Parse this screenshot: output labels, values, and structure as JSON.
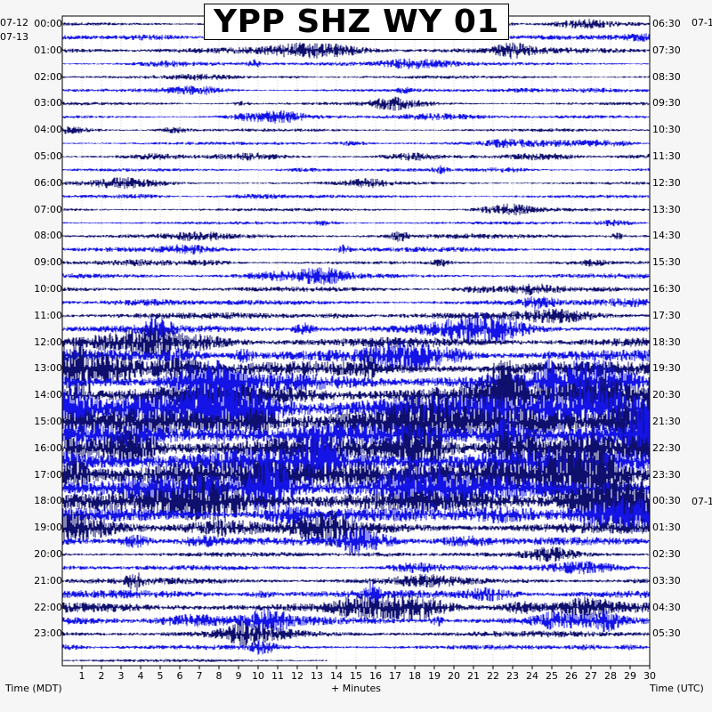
{
  "chart_data": {
    "type": "helicorder",
    "title": "YPP SHZ WY 01",
    "xlabel": "+ Minutes",
    "left_axis_label": "Time (MDT)",
    "right_axis_label": "Time (UTC)",
    "x_ticks": [
      "1",
      "2",
      "3",
      "4",
      "5",
      "6",
      "7",
      "8",
      "9",
      "10",
      "11",
      "12",
      "13",
      "14",
      "15",
      "16",
      "17",
      "18",
      "19",
      "20",
      "21",
      "22",
      "23",
      "24",
      "25",
      "26",
      "27",
      "28",
      "29",
      "30"
    ],
    "xlim": [
      0,
      30
    ],
    "left_date_labels": [
      "07-12",
      "07-13"
    ],
    "right_date_labels": [
      "07-1",
      "07-1"
    ],
    "left_hour_labels": [
      "00:00",
      "01:00",
      "02:00",
      "03:00",
      "04:00",
      "05:00",
      "06:00",
      "07:00",
      "08:00",
      "09:00",
      "10:00",
      "11:00",
      "12:00",
      "13:00",
      "14:00",
      "15:00",
      "16:00",
      "17:00",
      "18:00",
      "19:00",
      "20:00",
      "21:00",
      "22:00",
      "23:00"
    ],
    "right_hour_labels": [
      "06:30",
      "07:30",
      "08:30",
      "09:30",
      "10:30",
      "11:30",
      "12:30",
      "13:30",
      "14:30",
      "15:30",
      "16:30",
      "17:30",
      "18:30",
      "19:30",
      "20:30",
      "21:30",
      "22:30",
      "23:30",
      "00:30",
      "01:30",
      "02:30",
      "03:30",
      "04:30",
      "05:30"
    ],
    "trace_count": 49,
    "trace_minutes": 30,
    "series_colors": [
      "#0f0f6e",
      "#1414e6"
    ],
    "grid": "dotted",
    "noise_amplitude_by_trace": [
      2,
      3,
      4,
      2,
      2,
      2,
      2,
      2,
      2,
      2,
      2,
      2,
      2,
      2,
      2,
      2,
      3,
      3,
      2,
      3,
      3,
      3,
      4,
      5,
      6,
      7,
      9,
      11,
      13,
      17,
      16,
      15,
      14,
      16,
      18,
      16,
      13,
      8,
      7,
      5,
      3,
      3,
      4,
      5,
      6,
      5,
      4,
      3,
      2
    ]
  }
}
